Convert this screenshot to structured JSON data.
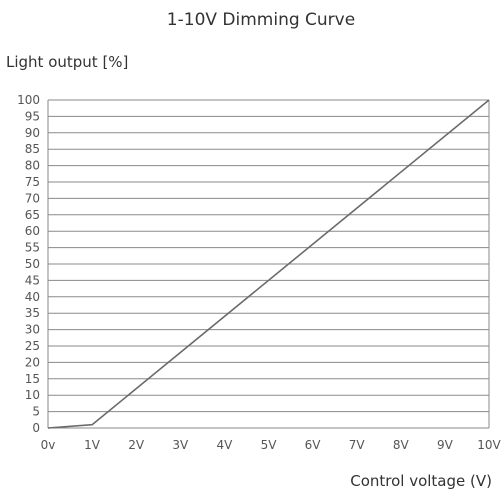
{
  "chart_data": {
    "type": "line",
    "title": "1-10V Dimming Curve",
    "xlabel": "Control voltage (V)",
    "ylabel": "Light output [%]",
    "x_tick_labels": [
      "0v",
      "1V",
      "2V",
      "3V",
      "4V",
      "5V",
      "6V",
      "7V",
      "8V",
      "9V",
      "10V"
    ],
    "y_tick_labels": [
      "0",
      "5",
      "10",
      "15",
      "20",
      "25",
      "30",
      "35",
      "40",
      "45",
      "50",
      "55",
      "60",
      "65",
      "70",
      "75",
      "80",
      "85",
      "90",
      "95",
      "100"
    ],
    "xlim": [
      0,
      10
    ],
    "ylim": [
      0,
      100
    ],
    "grid": "horizontal",
    "legend": "none",
    "series": [
      {
        "x": [
          0,
          1,
          10
        ],
        "y": [
          0,
          1,
          100
        ]
      }
    ],
    "colors": {
      "line": "#6b6b6b",
      "grid": "#8a8a8a",
      "axis": "#8a8a8a"
    }
  }
}
